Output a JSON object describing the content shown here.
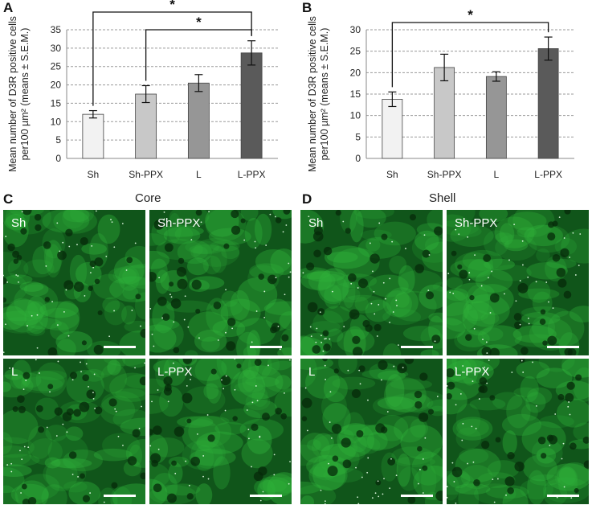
{
  "panels": {
    "a": "A",
    "b": "B",
    "c": "C",
    "d": "D"
  },
  "sections": {
    "core": "Core",
    "shell": "Shell"
  },
  "chart_data": [
    {
      "type": "bar",
      "panel": "A",
      "categories": [
        "Sh",
        "Sh-PPX",
        "L",
        "L-PPX"
      ],
      "values": [
        12,
        17.5,
        20.5,
        28.7
      ],
      "errors": [
        1,
        2.3,
        2.3,
        3.3
      ],
      "ylabel": "Mean number of D3R positive cells per100 µm² (means ± S.E.M.)",
      "ylim": [
        0,
        35
      ],
      "yticks": [
        0,
        5,
        10,
        15,
        20,
        25,
        30,
        35
      ],
      "grid": true,
      "bar_colors": [
        "#f2f2f2",
        "#c8c8c8",
        "#969696",
        "#5a5a5a"
      ],
      "significance": [
        {
          "from": "Sh",
          "to": "L-PPX",
          "label": "*"
        },
        {
          "from": "Sh-PPX",
          "to": "L-PPX",
          "label": "*"
        }
      ]
    },
    {
      "type": "bar",
      "panel": "B",
      "categories": [
        "Sh",
        "Sh-PPX",
        "L",
        "L-PPX"
      ],
      "values": [
        13.8,
        21.2,
        19.1,
        25.6
      ],
      "errors": [
        1.7,
        3.1,
        1.1,
        2.7
      ],
      "ylabel": "Mean number of D3R positive cells per100 µm² (means ± S.E.M.)",
      "ylim": [
        0,
        30
      ],
      "yticks": [
        0,
        5,
        10,
        15,
        20,
        25,
        30
      ],
      "grid": true,
      "bar_colors": [
        "#f2f2f2",
        "#c8c8c8",
        "#969696",
        "#5a5a5a"
      ],
      "significance": [
        {
          "from": "Sh",
          "to": "L-PPX",
          "label": "*"
        }
      ]
    }
  ],
  "images": {
    "core": [
      {
        "label": "Sh",
        "scale_bar": true
      },
      {
        "label": "Sh-PPX",
        "scale_bar": true
      },
      {
        "label": "L",
        "scale_bar": true
      },
      {
        "label": "L-PPX",
        "scale_bar": true
      }
    ],
    "shell": [
      {
        "label": "Sh",
        "scale_bar": true
      },
      {
        "label": "Sh-PPX",
        "scale_bar": true
      },
      {
        "label": "L",
        "scale_bar": true
      },
      {
        "label": "L-PPX",
        "scale_bar": true
      }
    ]
  },
  "colors": {
    "stain": "#1fa02a",
    "background": "#0c4a14"
  }
}
